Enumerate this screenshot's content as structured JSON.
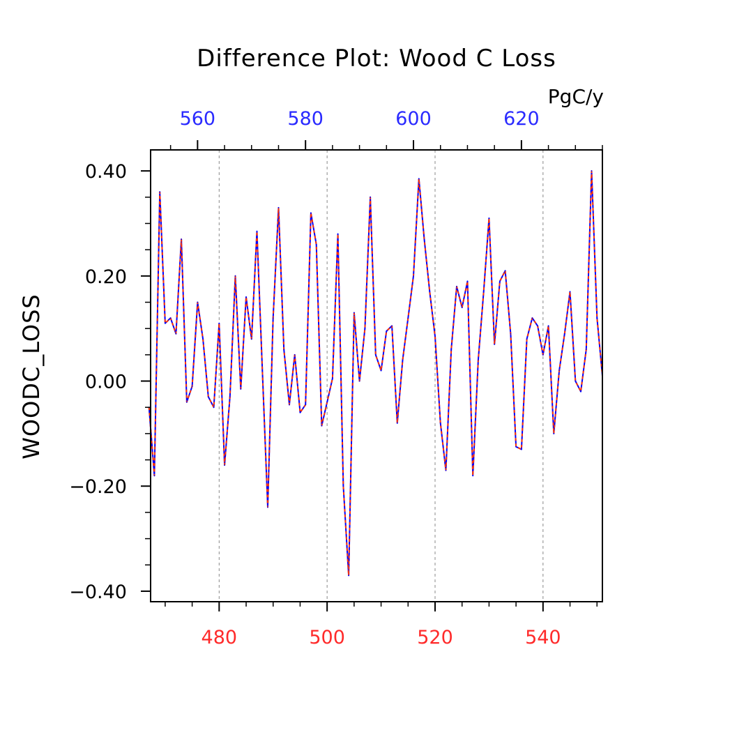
{
  "chart_data": {
    "type": "line",
    "title": "Difference Plot: Wood C Loss",
    "units": "PgC/y",
    "ylabel": "WOODC_LOSS",
    "xlabel": "",
    "ylim": [
      -0.42,
      0.44
    ],
    "xlim_bottom": [
      467.3,
      551
    ],
    "xlim_top": [
      551.3,
      635
    ],
    "y_ticks": [
      0.4,
      0.2,
      0.0,
      -0.2,
      -0.4
    ],
    "y_tick_labels": [
      "0.40",
      "0.20",
      "0.00",
      "−0.20",
      "−0.40"
    ],
    "x_bottom_ticks": [
      480,
      500,
      520,
      540
    ],
    "x_bottom_tick_labels": [
      "480",
      "500",
      "520",
      "540"
    ],
    "x_top_ticks": [
      560,
      580,
      600,
      620
    ],
    "x_top_tick_labels": [
      "560",
      "580",
      "600",
      "620"
    ],
    "grid": "vertical dashed at bottom axis major ticks",
    "colors": {
      "bottom_axis": "#ff2a2a",
      "top_axis": "#2a2aff",
      "series_a": "#0000ff",
      "series_b": "#ff3300",
      "frame": "#000000"
    },
    "x": [
      467,
      468,
      469,
      470,
      471,
      472,
      473,
      474,
      475,
      476,
      477,
      478,
      479,
      480,
      481,
      482,
      483,
      484,
      485,
      486,
      487,
      488,
      489,
      490,
      491,
      492,
      493,
      494,
      495,
      496,
      497,
      498,
      499,
      500,
      501,
      502,
      503,
      504,
      505,
      506,
      507,
      508,
      509,
      510,
      511,
      512,
      513,
      514,
      515,
      516,
      517,
      518,
      519,
      520,
      521,
      522,
      523,
      524,
      525,
      526,
      527,
      528,
      529,
      530,
      531,
      532,
      533,
      534,
      535,
      536,
      537,
      538,
      539,
      540,
      541,
      542,
      543,
      544,
      545,
      546,
      547,
      548,
      549,
      550,
      551
    ],
    "series": [
      {
        "values": [
          -0.05,
          -0.18,
          0.36,
          0.11,
          0.12,
          0.09,
          0.27,
          -0.04,
          -0.01,
          0.15,
          0.08,
          -0.03,
          -0.05,
          0.11,
          -0.16,
          -0.03,
          0.2,
          -0.015,
          0.16,
          0.08,
          0.285,
          0.02,
          -0.24,
          0.12,
          0.33,
          0.06,
          -0.045,
          0.05,
          -0.06,
          -0.045,
          0.32,
          0.26,
          -0.085,
          -0.04,
          0.005,
          0.28,
          -0.2,
          -0.37,
          0.13,
          0.0,
          0.1,
          0.35,
          0.05,
          0.02,
          0.095,
          0.105,
          -0.08,
          0.04,
          0.12,
          0.2,
          0.385,
          0.27,
          0.17,
          0.085,
          -0.08,
          -0.17,
          0.06,
          0.18,
          0.14,
          0.19,
          -0.18,
          0.04,
          0.17,
          0.31,
          0.07,
          0.19,
          0.21,
          0.09,
          -0.125,
          -0.13,
          0.08,
          0.12,
          0.105,
          0.05,
          0.105,
          -0.1,
          0.02,
          0.09,
          0.17,
          0.0,
          -0.02,
          0.06,
          0.4,
          0.12,
          0.01
        ]
      }
    ]
  }
}
